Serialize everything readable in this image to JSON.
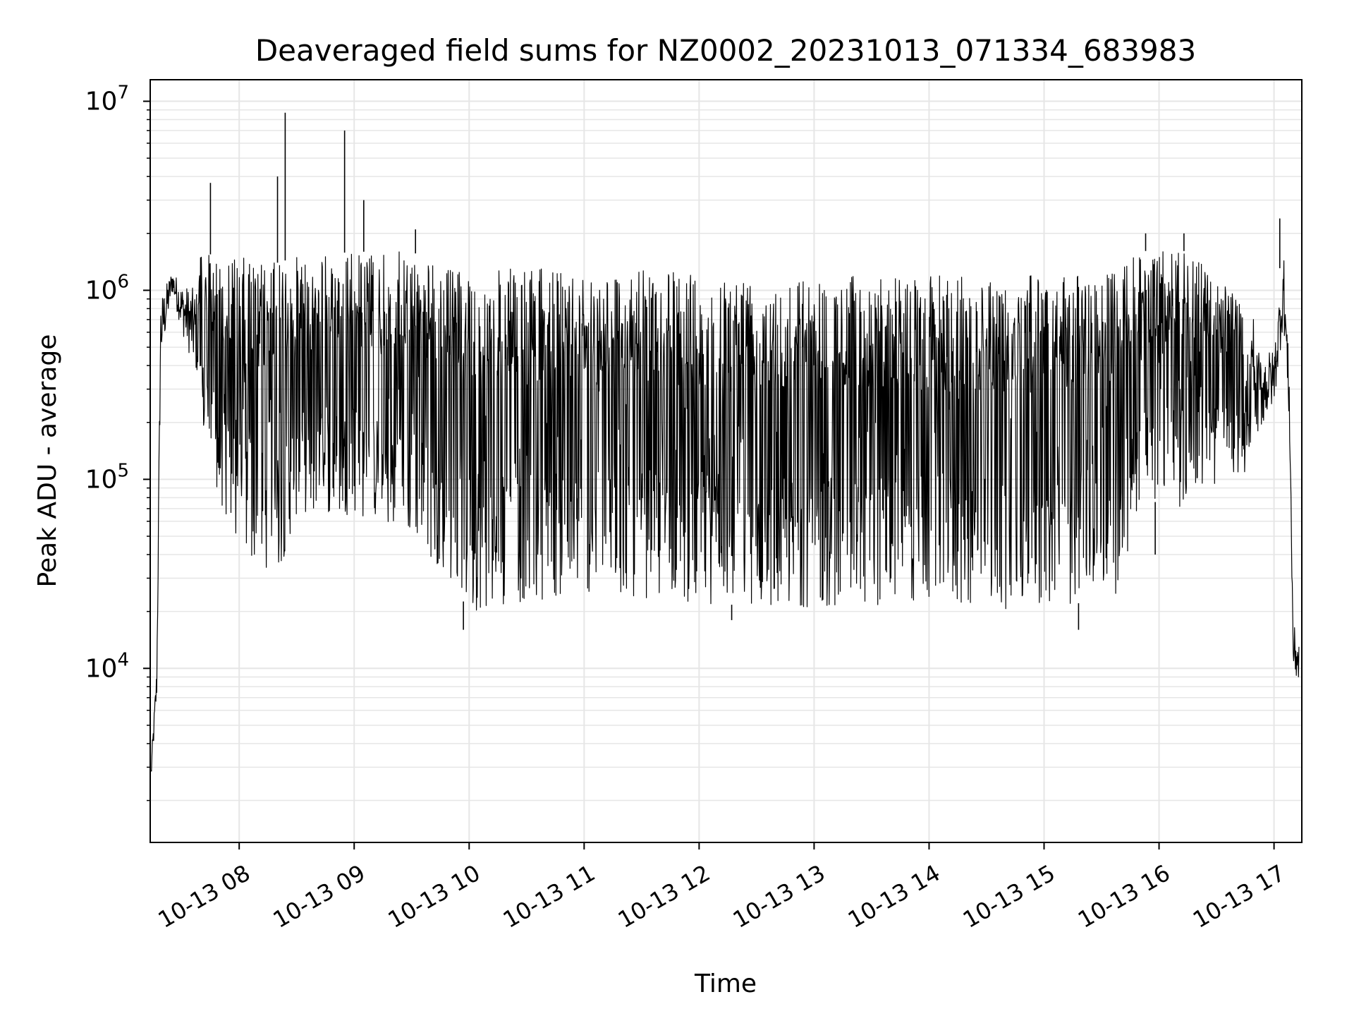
{
  "chart_data": {
    "type": "line",
    "title": "Deaveraged field sums for NZ0002_20231013_071334_683983",
    "xlabel": "Time",
    "ylabel": "Peak ADU - average",
    "x_tick_labels": [
      "10-13 08",
      "10-13 09",
      "10-13 10",
      "10-13 11",
      "10-13 12",
      "10-13 13",
      "10-13 14",
      "10-13 15",
      "10-13 16",
      "10-13 17"
    ],
    "x_tick_times": [
      "2023-10-13 08:00",
      "2023-10-13 09:00",
      "2023-10-13 10:00",
      "2023-10-13 11:00",
      "2023-10-13 12:00",
      "2023-10-13 13:00",
      "2023-10-13 14:00",
      "2023-10-13 15:00",
      "2023-10-13 16:00",
      "2023-10-13 17:00"
    ],
    "xlim": [
      "2023-10-13 07:13:34",
      "2023-10-13 17:14:30"
    ],
    "y_scale": "log",
    "ylim": [
      1200,
      13000000
    ],
    "y_tick_labels": [
      {
        "base": "10",
        "exp": "4",
        "value": 10000
      },
      {
        "base": "10",
        "exp": "5",
        "value": 100000
      },
      {
        "base": "10",
        "exp": "6",
        "value": 1000000
      },
      {
        "base": "10",
        "exp": "7",
        "value": 10000000
      }
    ],
    "grid": true,
    "line_color": "#000000",
    "grid_color": "#e6e6e6",
    "series": [
      {
        "envelope": [
          {
            "t": "07:14",
            "upper": 3500,
            "lower": 2200
          },
          {
            "t": "07:17",
            "upper": 12000,
            "lower": 6000
          },
          {
            "t": "07:19",
            "upper": 1200000,
            "lower": 300000
          },
          {
            "t": "07:25",
            "upper": 1400000,
            "lower": 900000
          },
          {
            "t": "07:30",
            "upper": 1300000,
            "lower": 500000
          },
          {
            "t": "07:40",
            "upper": 1500000,
            "lower": 200000
          },
          {
            "t": "07:50",
            "upper": 1600000,
            "lower": 70000
          },
          {
            "t": "08:00",
            "upper": 1500000,
            "lower": 40000
          },
          {
            "t": "08:20",
            "upper": 1400000,
            "lower": 30000
          },
          {
            "t": "08:30",
            "upper": 1500000,
            "lower": 65000
          },
          {
            "t": "09:00",
            "upper": 1600000,
            "lower": 65000
          },
          {
            "t": "09:30",
            "upper": 1600000,
            "lower": 50000
          },
          {
            "t": "09:50",
            "upper": 1300000,
            "lower": 30000
          },
          {
            "t": "10:00",
            "upper": 1300000,
            "lower": 20000
          },
          {
            "t": "11:00",
            "upper": 1300000,
            "lower": 25000
          },
          {
            "t": "12:00",
            "upper": 1250000,
            "lower": 22000
          },
          {
            "t": "13:00",
            "upper": 1200000,
            "lower": 21000
          },
          {
            "t": "14:00",
            "upper": 1200000,
            "lower": 22000
          },
          {
            "t": "15:00",
            "upper": 1200000,
            "lower": 20000
          },
          {
            "t": "15:40",
            "upper": 1300000,
            "lower": 25000
          },
          {
            "t": "15:50",
            "upper": 1600000,
            "lower": 80000
          },
          {
            "t": "16:10",
            "upper": 1700000,
            "lower": 70000
          },
          {
            "t": "16:30",
            "upper": 1200000,
            "lower": 90000
          },
          {
            "t": "16:50",
            "upper": 700000,
            "lower": 110000
          },
          {
            "t": "17:00",
            "upper": 600000,
            "lower": 200000
          },
          {
            "t": "17:05",
            "upper": 2200000,
            "lower": 500000
          },
          {
            "t": "17:08",
            "upper": 450000,
            "lower": 150000
          },
          {
            "t": "17:10",
            "upper": 20000,
            "lower": 8000
          },
          {
            "t": "17:13",
            "upper": 20000,
            "lower": 6000
          }
        ],
        "spikes": [
          {
            "t": "07:45",
            "value": 3700000
          },
          {
            "t": "08:20",
            "value": 4000000
          },
          {
            "t": "08:24",
            "value": 8700000
          },
          {
            "t": "08:55",
            "value": 7000000
          },
          {
            "t": "09:05",
            "value": 3000000
          },
          {
            "t": "09:32",
            "value": 2100000
          },
          {
            "t": "15:53",
            "value": 2000000
          },
          {
            "t": "16:13",
            "value": 2000000
          },
          {
            "t": "17:03",
            "value": 2400000
          }
        ],
        "dips": [
          {
            "t": "09:57",
            "value": 16000
          },
          {
            "t": "12:17",
            "value": 18000
          },
          {
            "t": "15:18",
            "value": 16000
          },
          {
            "t": "15:58",
            "value": 40000
          }
        ]
      }
    ]
  }
}
